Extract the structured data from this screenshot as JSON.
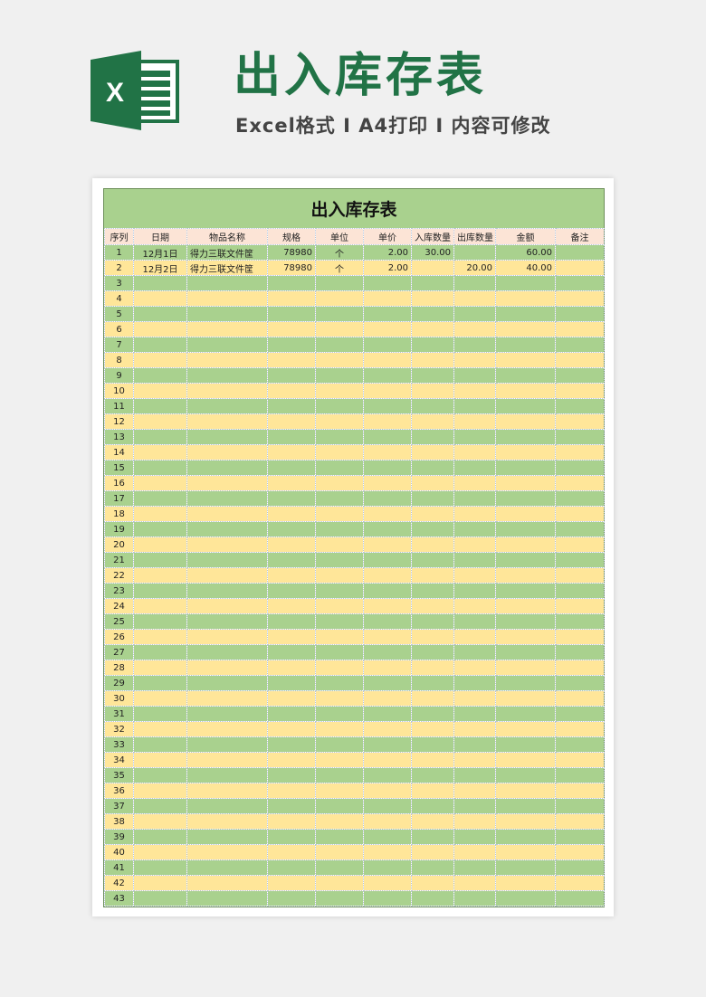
{
  "banner": {
    "title": "出入库存表",
    "subtitle": "Excel格式 I A4打印 I 内容可修改",
    "logo_letter": "X",
    "brand_color": "#217346"
  },
  "sheet": {
    "title": "出入库存表",
    "headers": [
      "序列",
      "日期",
      "物品名称",
      "规格",
      "单位",
      "单价",
      "入库数量",
      "出库数量",
      "金额",
      "备注"
    ],
    "rows": [
      [
        "1",
        "12月1日",
        "得力三联文件筐",
        "78980",
        "个",
        "2.00",
        "30.00",
        "",
        "60.00",
        ""
      ],
      [
        "2",
        "12月2日",
        "得力三联文件筐",
        "78980",
        "个",
        "2.00",
        "",
        "20.00",
        "40.00",
        ""
      ],
      [
        "3"
      ],
      [
        "4"
      ],
      [
        "5"
      ],
      [
        "6"
      ],
      [
        "7"
      ],
      [
        "8"
      ],
      [
        "9"
      ],
      [
        "10"
      ],
      [
        "11"
      ],
      [
        "12"
      ],
      [
        "13"
      ],
      [
        "14"
      ],
      [
        "15"
      ],
      [
        "16"
      ],
      [
        "17"
      ],
      [
        "18"
      ],
      [
        "19"
      ],
      [
        "20"
      ],
      [
        "21"
      ],
      [
        "22"
      ],
      [
        "23"
      ],
      [
        "24"
      ],
      [
        "25"
      ],
      [
        "26"
      ],
      [
        "27"
      ],
      [
        "28"
      ],
      [
        "29"
      ],
      [
        "30"
      ],
      [
        "31"
      ],
      [
        "32"
      ],
      [
        "33"
      ],
      [
        "34"
      ],
      [
        "35"
      ],
      [
        "36"
      ],
      [
        "37"
      ],
      [
        "38"
      ],
      [
        "39"
      ],
      [
        "40"
      ],
      [
        "41"
      ],
      [
        "42"
      ],
      [
        "43"
      ]
    ],
    "colors": {
      "odd_row": "#a9d18e",
      "even_row": "#ffe699",
      "header": "#fce4d6"
    }
  }
}
